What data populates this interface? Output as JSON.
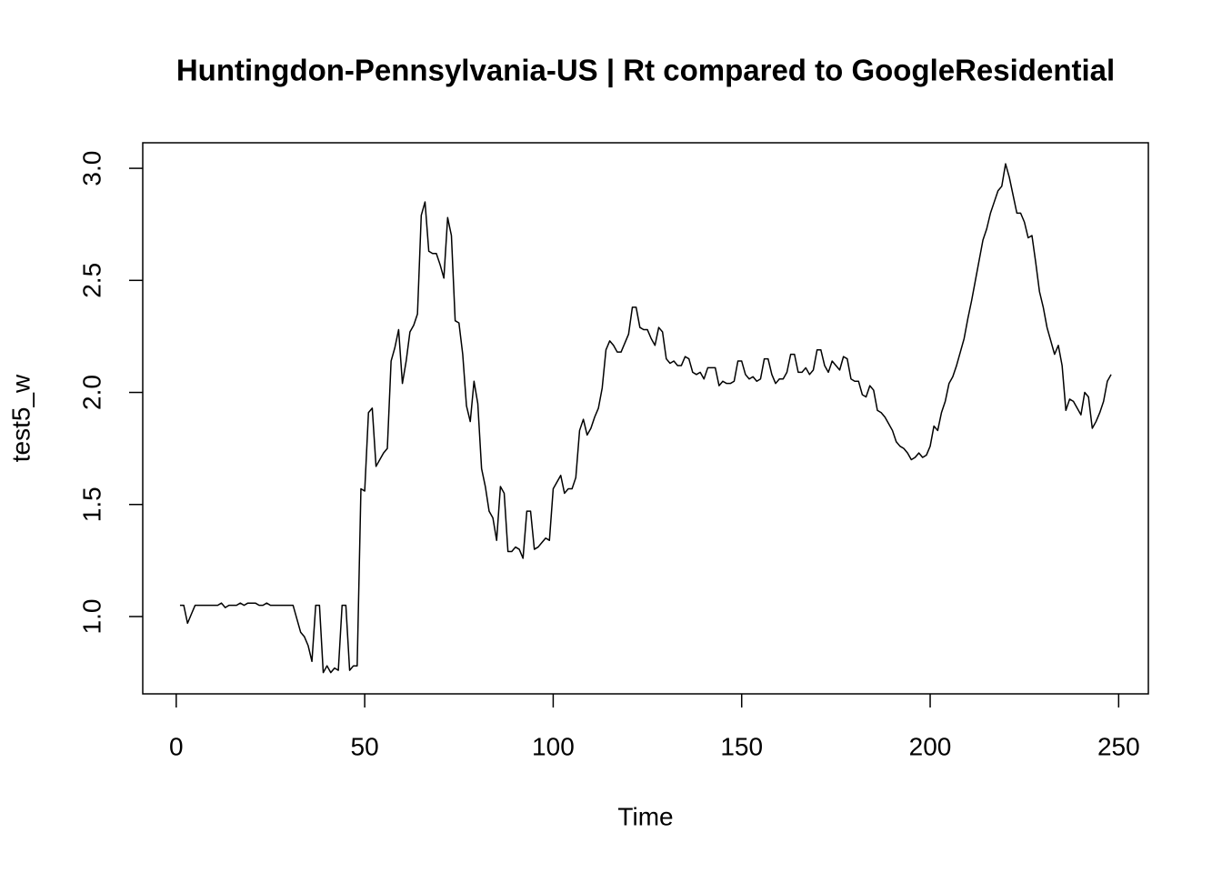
{
  "chart_data": {
    "type": "line",
    "title": "Huntingdon-Pennsylvania-US | Rt compared to GoogleResidential",
    "x_label": "Time",
    "y_label": "test5_w",
    "x": [
      1,
      2,
      3,
      4,
      5,
      6,
      7,
      8,
      9,
      10,
      11,
      12,
      13,
      14,
      15,
      16,
      17,
      18,
      19,
      20,
      21,
      22,
      23,
      24,
      25,
      26,
      27,
      28,
      29,
      30,
      31,
      32,
      33,
      34,
      35,
      36,
      37,
      38,
      39,
      40,
      41,
      42,
      43,
      44,
      45,
      46,
      47,
      48,
      49,
      50,
      51,
      52,
      53,
      54,
      55,
      56,
      57,
      58,
      59,
      60,
      61,
      62,
      63,
      64,
      65,
      66,
      67,
      68,
      69,
      70,
      71,
      72,
      73,
      74,
      75,
      76,
      77,
      78,
      79,
      80,
      81,
      82,
      83,
      84,
      85,
      86,
      87,
      88,
      89,
      90,
      91,
      92,
      93,
      94,
      95,
      96,
      97,
      98,
      99,
      100,
      101,
      102,
      103,
      104,
      105,
      106,
      107,
      108,
      109,
      110,
      111,
      112,
      113,
      114,
      115,
      116,
      117,
      118,
      119,
      120,
      121,
      122,
      123,
      124,
      125,
      126,
      127,
      128,
      129,
      130,
      131,
      132,
      133,
      134,
      135,
      136,
      137,
      138,
      139,
      140,
      141,
      142,
      143,
      144,
      145,
      146,
      147,
      148,
      149,
      150,
      151,
      152,
      153,
      154,
      155,
      156,
      157,
      158,
      159,
      160,
      161,
      162,
      163,
      164,
      165,
      166,
      167,
      168,
      169,
      170,
      171,
      172,
      173,
      174,
      175,
      176,
      177,
      178,
      179,
      180,
      181,
      182,
      183,
      184,
      185,
      186,
      187,
      188,
      189,
      190,
      191,
      192,
      193,
      194,
      195,
      196,
      197,
      198,
      199,
      200,
      201,
      202,
      203,
      204,
      205,
      206,
      207,
      208,
      209,
      210,
      211,
      212,
      213,
      214,
      215,
      216,
      217,
      218,
      219,
      220,
      221,
      222,
      223,
      224,
      225,
      226,
      227,
      228,
      229,
      230,
      231,
      232,
      233,
      234,
      235,
      236,
      237,
      238,
      239,
      240,
      241,
      242,
      243,
      244,
      245,
      246,
      247,
      248
    ],
    "series": [
      {
        "name": "test5_w",
        "color": "#000000",
        "values": [
          1.05,
          1.05,
          0.97,
          1.01,
          1.05,
          1.05,
          1.05,
          1.05,
          1.05,
          1.05,
          1.05,
          1.06,
          1.04,
          1.05,
          1.05,
          1.05,
          1.06,
          1.05,
          1.06,
          1.06,
          1.06,
          1.05,
          1.05,
          1.06,
          1.05,
          1.05,
          1.05,
          1.05,
          1.05,
          1.05,
          1.05,
          0.99,
          0.93,
          0.91,
          0.87,
          0.8,
          1.05,
          1.05,
          0.75,
          0.78,
          0.75,
          0.77,
          0.76,
          1.05,
          1.05,
          0.76,
          0.78,
          0.78,
          1.57,
          1.56,
          1.91,
          1.93,
          1.67,
          1.7,
          1.73,
          1.75,
          2.14,
          2.2,
          2.28,
          2.04,
          2.14,
          2.27,
          2.3,
          2.35,
          2.79,
          2.85,
          2.63,
          2.62,
          2.62,
          2.57,
          2.51,
          2.78,
          2.7,
          2.32,
          2.31,
          2.17,
          1.94,
          1.87,
          2.05,
          1.95,
          1.66,
          1.58,
          1.47,
          1.44,
          1.34,
          1.58,
          1.55,
          1.29,
          1.29,
          1.31,
          1.3,
          1.26,
          1.47,
          1.47,
          1.3,
          1.31,
          1.33,
          1.35,
          1.34,
          1.57,
          1.6,
          1.63,
          1.55,
          1.57,
          1.57,
          1.62,
          1.83,
          1.88,
          1.81,
          1.84,
          1.89,
          1.93,
          2.02,
          2.19,
          2.23,
          2.21,
          2.18,
          2.18,
          2.22,
          2.26,
          2.38,
          2.38,
          2.29,
          2.28,
          2.28,
          2.24,
          2.21,
          2.29,
          2.27,
          2.15,
          2.13,
          2.14,
          2.12,
          2.12,
          2.16,
          2.15,
          2.09,
          2.08,
          2.09,
          2.06,
          2.11,
          2.11,
          2.11,
          2.03,
          2.05,
          2.04,
          2.04,
          2.05,
          2.14,
          2.14,
          2.08,
          2.06,
          2.07,
          2.05,
          2.06,
          2.15,
          2.15,
          2.08,
          2.04,
          2.06,
          2.06,
          2.09,
          2.17,
          2.17,
          2.09,
          2.09,
          2.11,
          2.08,
          2.1,
          2.19,
          2.19,
          2.12,
          2.09,
          2.14,
          2.12,
          2.1,
          2.16,
          2.15,
          2.06,
          2.05,
          2.05,
          1.99,
          1.98,
          2.03,
          2.01,
          1.92,
          1.91,
          1.89,
          1.86,
          1.83,
          1.78,
          1.76,
          1.75,
          1.73,
          1.7,
          1.71,
          1.73,
          1.71,
          1.72,
          1.76,
          1.85,
          1.83,
          1.91,
          1.96,
          2.04,
          2.07,
          2.12,
          2.18,
          2.24,
          2.33,
          2.41,
          2.5,
          2.59,
          2.68,
          2.73,
          2.8,
          2.85,
          2.9,
          2.92,
          3.02,
          2.96,
          2.88,
          2.8,
          2.8,
          2.76,
          2.69,
          2.7,
          2.58,
          2.45,
          2.38,
          2.29,
          2.23,
          2.17,
          2.21,
          2.12,
          1.92,
          1.97,
          1.96,
          1.93,
          1.9,
          2.0,
          1.98,
          1.84,
          1.87,
          1.91,
          1.96,
          2.05,
          2.08
        ]
      }
    ],
    "xlim": [
      -8.88,
      257.88
    ],
    "xticks": [
      0,
      50,
      100,
      150,
      200,
      250
    ],
    "ylim": [
      0.655,
      3.114
    ],
    "yticks": [
      {
        "value": 1,
        "label": "1.0"
      },
      1.5,
      {
        "value": 2,
        "label": "2.0"
      },
      2.5,
      {
        "value": 3,
        "label": "3.0"
      }
    ],
    "grid": false
  }
}
